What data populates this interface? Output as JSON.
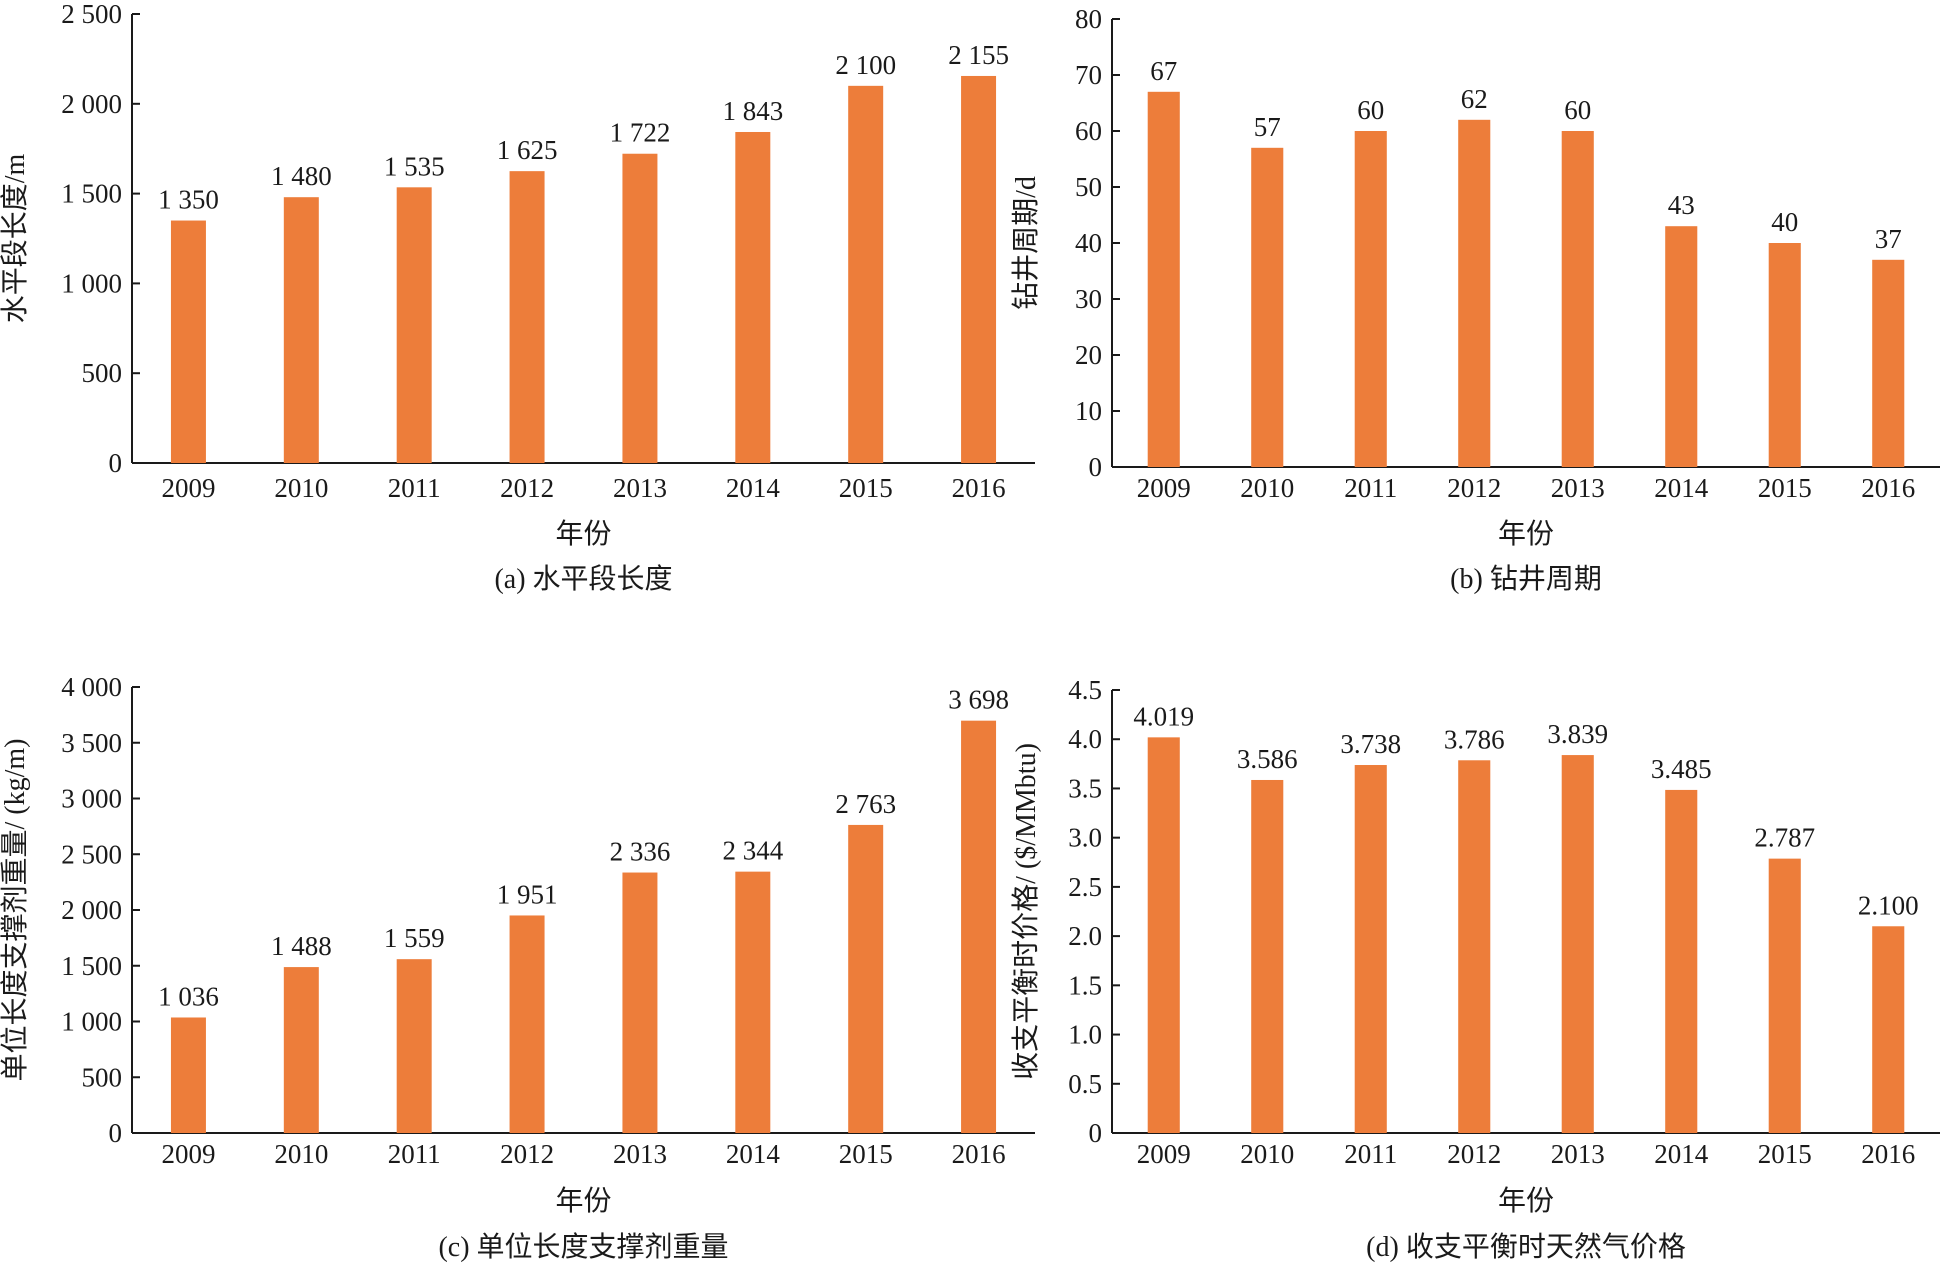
{
  "bar_color": "#ED7D3A",
  "chart_data": [
    {
      "id": "a",
      "type": "bar",
      "categories": [
        "2009",
        "2010",
        "2011",
        "2012",
        "2013",
        "2014",
        "2015",
        "2016"
      ],
      "values": [
        1350,
        1480,
        1535,
        1625,
        1722,
        1843,
        2100,
        2155
      ],
      "value_labels": [
        "1 350",
        "1 480",
        "1 535",
        "1 625",
        "1 722",
        "1 843",
        "2 100",
        "2 155"
      ],
      "yticks": [
        0,
        500,
        1000,
        1500,
        2000,
        2500
      ],
      "ytick_labels": [
        "0",
        "500",
        "1 000",
        "1 500",
        "2 000",
        "2 500"
      ],
      "ylim": [
        0,
        2500
      ],
      "xlabel": "年份",
      "ylabel": "水平段长度/m",
      "caption": "(a) 水平段长度",
      "grid": false,
      "legend": "none"
    },
    {
      "id": "b",
      "type": "bar",
      "categories": [
        "2009",
        "2010",
        "2011",
        "2012",
        "2013",
        "2014",
        "2015",
        "2016"
      ],
      "values": [
        67,
        57,
        60,
        62,
        60,
        43,
        40,
        37
      ],
      "value_labels": [
        "67",
        "57",
        "60",
        "62",
        "60",
        "43",
        "40",
        "37"
      ],
      "yticks": [
        0,
        10,
        20,
        30,
        40,
        50,
        60,
        70,
        80
      ],
      "ytick_labels": [
        "0",
        "10",
        "20",
        "30",
        "40",
        "50",
        "60",
        "70",
        "80"
      ],
      "ylim": [
        0,
        80
      ],
      "xlabel": "年份",
      "ylabel": "钻井周期/d",
      "caption": "(b) 钻井周期",
      "grid": false,
      "legend": "none"
    },
    {
      "id": "c",
      "type": "bar",
      "categories": [
        "2009",
        "2010",
        "2011",
        "2012",
        "2013",
        "2014",
        "2015",
        "2016"
      ],
      "values": [
        1036,
        1488,
        1559,
        1951,
        2336,
        2344,
        2763,
        3698
      ],
      "value_labels": [
        "1 036",
        "1 488",
        "1 559",
        "1 951",
        "2 336",
        "2 344",
        "2 763",
        "3 698"
      ],
      "yticks": [
        0,
        500,
        1000,
        1500,
        2000,
        2500,
        3000,
        3500,
        4000
      ],
      "ytick_labels": [
        "0",
        "500",
        "1 000",
        "1 500",
        "2 000",
        "2 500",
        "3 000",
        "3 500",
        "4 000"
      ],
      "ylim": [
        0,
        4000
      ],
      "xlabel": "年份",
      "ylabel": "单位长度支撑剂重量/ (kg/m)",
      "caption": "(c) 单位长度支撑剂重量",
      "grid": false,
      "legend": "none"
    },
    {
      "id": "d",
      "type": "bar",
      "categories": [
        "2009",
        "2010",
        "2011",
        "2012",
        "2013",
        "2014",
        "2015",
        "2016"
      ],
      "values": [
        4.019,
        3.586,
        3.738,
        3.786,
        3.839,
        3.485,
        2.787,
        2.1
      ],
      "value_labels": [
        "4.019",
        "3.586",
        "3.738",
        "3.786",
        "3.839",
        "3.485",
        "2.787",
        "2.100"
      ],
      "yticks": [
        0,
        0.5,
        1.0,
        1.5,
        2.0,
        2.5,
        3.0,
        3.5,
        4.0,
        4.5
      ],
      "ytick_labels": [
        "0",
        "0.5",
        "1.0",
        "1.5",
        "2.0",
        "2.5",
        "3.0",
        "3.5",
        "4.0",
        "4.5"
      ],
      "ylim": [
        0,
        4.5
      ],
      "xlabel": "年份",
      "ylabel": "收支平衡时价格/ ($/MMbtu)",
      "caption": "(d) 收支平衡时天然气价格",
      "grid": false,
      "legend": "none"
    }
  ]
}
